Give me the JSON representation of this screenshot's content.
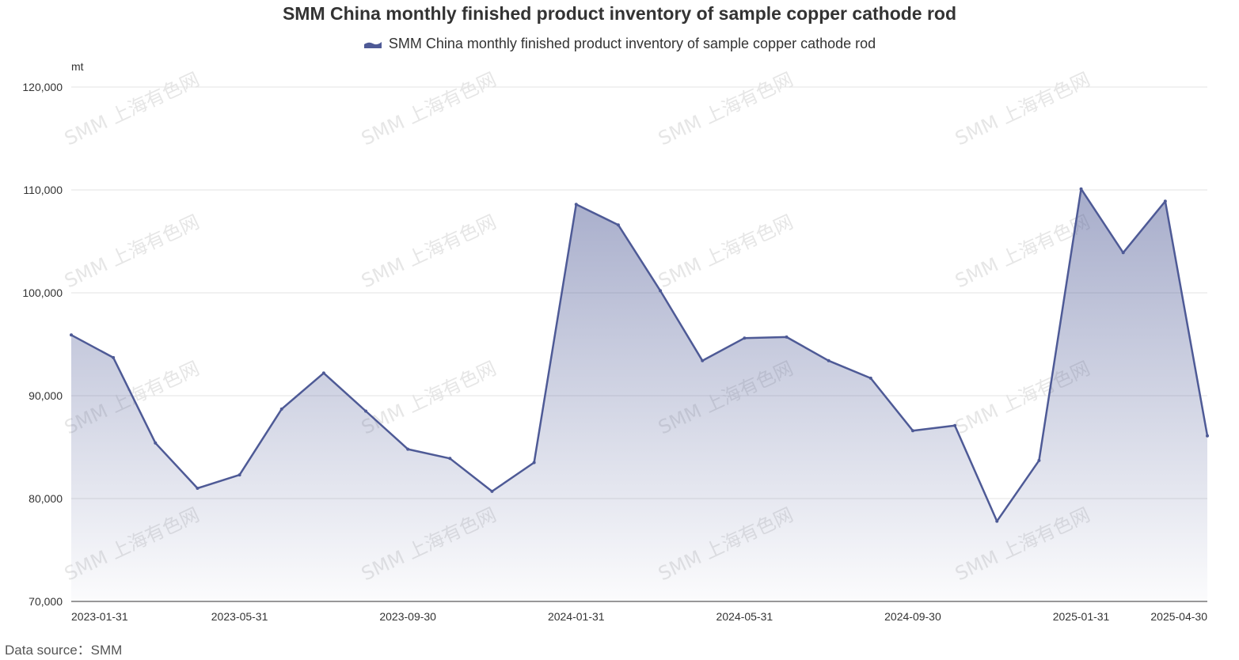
{
  "chart_data": {
    "type": "area",
    "title": "SMM China monthly finished product inventory of sample copper cathode rod",
    "ylabel": "mt",
    "ylim": [
      70000,
      120000
    ],
    "yticks": [
      70000,
      80000,
      90000,
      100000,
      110000,
      120000
    ],
    "ytick_labels": [
      "70,000",
      "80,000",
      "90,000",
      "100,000",
      "110,000",
      "120,000"
    ],
    "xtick_labels": [
      "2023-01-31",
      "2023-05-31",
      "2023-09-30",
      "2024-01-31",
      "2024-05-31",
      "2024-09-30",
      "2025-01-31",
      "2025-04-30"
    ],
    "x": [
      "2023-01-31",
      "2023-02-28",
      "2023-03-31",
      "2023-04-30",
      "2023-05-31",
      "2023-06-30",
      "2023-07-31",
      "2023-08-31",
      "2023-09-30",
      "2023-10-31",
      "2023-11-30",
      "2023-12-31",
      "2024-01-31",
      "2024-02-29",
      "2024-03-31",
      "2024-04-30",
      "2024-05-31",
      "2024-06-30",
      "2024-07-31",
      "2024-08-31",
      "2024-09-30",
      "2024-10-31",
      "2024-11-30",
      "2024-12-31",
      "2025-01-31",
      "2025-02-28",
      "2025-03-31",
      "2025-04-30"
    ],
    "series": [
      {
        "name": "SMM China monthly finished product inventory of sample copper cathode rod",
        "color": "#4e5a96",
        "values": [
          95900,
          93700,
          85400,
          81000,
          82300,
          88700,
          92200,
          88500,
          84800,
          83900,
          80700,
          83500,
          108600,
          106600,
          100200,
          93400,
          95600,
          95700,
          93400,
          91700,
          86600,
          87100,
          77800,
          83700,
          110100,
          103900,
          108900,
          86100
        ]
      }
    ],
    "grid": true,
    "legend_position": "top-center"
  },
  "watermark_text": "SMM 上海有色网",
  "source_note": "Data source：SMM"
}
